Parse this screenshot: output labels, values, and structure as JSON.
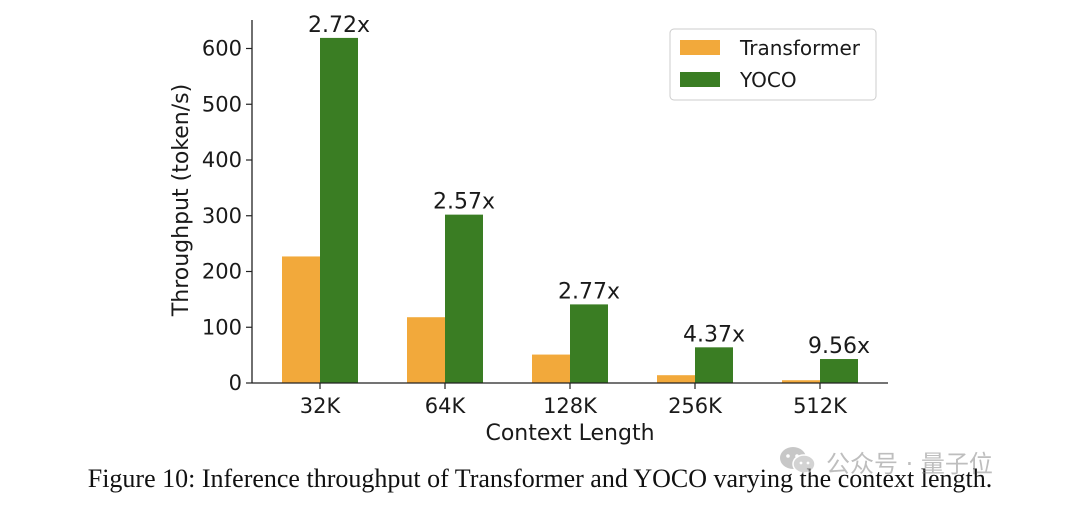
{
  "chart_data": {
    "type": "bar",
    "categories": [
      "32K",
      "64K",
      "128K",
      "256K",
      "512K"
    ],
    "series": [
      {
        "name": "Transformer",
        "values": [
          227,
          118,
          51,
          14,
          5
        ],
        "color": "#F2A93B"
      },
      {
        "name": "YOCO",
        "values": [
          619,
          302,
          141,
          64,
          43
        ],
        "color": "#3A7D23"
      }
    ],
    "annotations": [
      "2.72x",
      "2.57x",
      "2.77x",
      "4.37x",
      "9.56x"
    ],
    "xlabel": "Context Length",
    "ylabel": "Throughput (token/s)",
    "yticks": [
      0,
      100,
      200,
      300,
      400,
      500,
      600
    ],
    "ylim": [
      0,
      650
    ],
    "legend_position": "top-right",
    "grid": false
  },
  "caption": "Figure 10: Inference throughput of Transformer and YOCO varying the context length.",
  "watermark": {
    "text": "公众号 · 量子位",
    "icon": "wechat-icon"
  }
}
